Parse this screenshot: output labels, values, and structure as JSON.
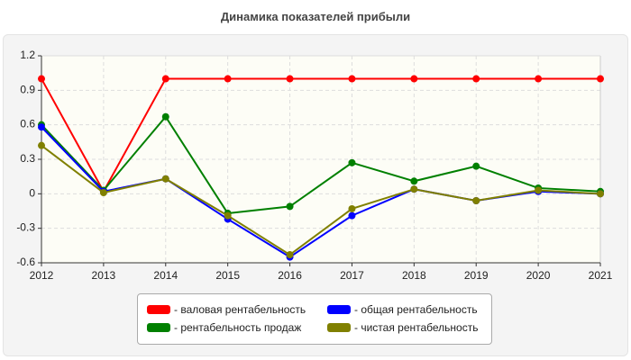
{
  "chart_data": {
    "type": "line",
    "title": "Динамика показателей прибыли",
    "x": [
      "2012",
      "2013",
      "2014",
      "2015",
      "2016",
      "2017",
      "2018",
      "2019",
      "2020",
      "2021"
    ],
    "ylim": [
      -0.6,
      1.2
    ],
    "yticks": [
      "1.2",
      "0.9",
      "0.6",
      "0.3",
      "0",
      "-0.3",
      "-0.6"
    ],
    "grid": true,
    "legend_position": "bottom",
    "series": [
      {
        "name": "- валовая рентабельность",
        "color": "#ff0000",
        "values": [
          1,
          0.02,
          1,
          1,
          1,
          1,
          1,
          1,
          1,
          1
        ]
      },
      {
        "name": "- общая рентабельность",
        "color": "#0000ff",
        "values": [
          0.58,
          0.02,
          0.13,
          -0.22,
          -0.55,
          -0.19,
          0.04,
          -0.06,
          0.02,
          0.0
        ]
      },
      {
        "name": "- рентабельность продаж",
        "color": "#008000",
        "values": [
          0.6,
          0.03,
          0.67,
          -0.17,
          -0.11,
          0.27,
          0.11,
          0.24,
          0.05,
          0.02
        ]
      },
      {
        "name": "- чистая рентабельность",
        "color": "#808000",
        "values": [
          0.42,
          0.01,
          0.13,
          -0.19,
          -0.53,
          -0.13,
          0.04,
          -0.06,
          0.03,
          0.0
        ]
      }
    ]
  }
}
